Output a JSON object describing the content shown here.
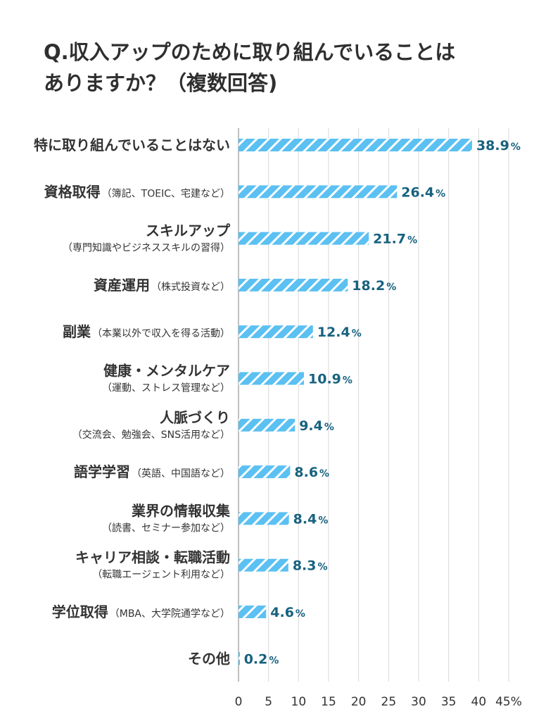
{
  "title": {
    "line1": "Q.収入アップのために取り組んでいることは",
    "line2": "ありますか？（複数回答)"
  },
  "colors": {
    "bar": "#5bc0f2",
    "bar_stripe": "#ffffff",
    "value_text": "#17627f",
    "grid": "#d9d9d9",
    "axis": "#aaaaaa",
    "label_text": "#333333"
  },
  "chart_data": {
    "type": "bar",
    "orientation": "horizontal",
    "categories": [
      {
        "main": "特に取り組んでいることはない",
        "sub": "",
        "sub_position": ""
      },
      {
        "main": "資格取得",
        "sub": "（簿記、TOEIC、宅建など）",
        "sub_position": "inline"
      },
      {
        "main": "スキルアップ",
        "sub": "（専門知識やビジネススキルの習得）",
        "sub_position": "below"
      },
      {
        "main": "資産運用",
        "sub": "（株式投資など）",
        "sub_position": "inline"
      },
      {
        "main": "副業",
        "sub": "（本業以外で収入を得る活動）",
        "sub_position": "inline"
      },
      {
        "main": "健康・メンタルケア",
        "sub": "（運動、ストレス管理など）",
        "sub_position": "below"
      },
      {
        "main": "人脈づくり",
        "sub": "（交流会、勉強会、SNS活用など）",
        "sub_position": "below"
      },
      {
        "main": "語学学習",
        "sub": "（英語、中国語など）",
        "sub_position": "inline"
      },
      {
        "main": "業界の情報収集",
        "sub": "（読書、セミナー参加など）",
        "sub_position": "below"
      },
      {
        "main": "キャリア相談・転職活動",
        "sub": "（転職エージェント利用など）",
        "sub_position": "below"
      },
      {
        "main": "学位取得",
        "sub": "（MBA、大学院通学など）",
        "sub_position": "inline"
      },
      {
        "main": "その他",
        "sub": "",
        "sub_position": ""
      }
    ],
    "values": [
      38.9,
      26.4,
      21.7,
      18.2,
      12.4,
      10.9,
      9.4,
      8.6,
      8.4,
      8.3,
      4.6,
      0.2
    ],
    "value_labels": [
      "38.9",
      "26.4",
      "21.7",
      "18.2",
      "12.4",
      "10.9",
      "9.4",
      "8.6",
      "8.4",
      "8.3",
      "4.6",
      "0.2"
    ],
    "value_suffix": "%",
    "xlim": [
      0,
      45
    ],
    "xticks": [
      0,
      5,
      10,
      15,
      20,
      25,
      30,
      35,
      40,
      45
    ],
    "xtick_labels": [
      "0",
      "5",
      "10",
      "15",
      "20",
      "25",
      "30",
      "35",
      "40",
      "45%"
    ],
    "grid": "vertical",
    "legend": "none",
    "bar_pattern": "diagonal-stripes"
  }
}
